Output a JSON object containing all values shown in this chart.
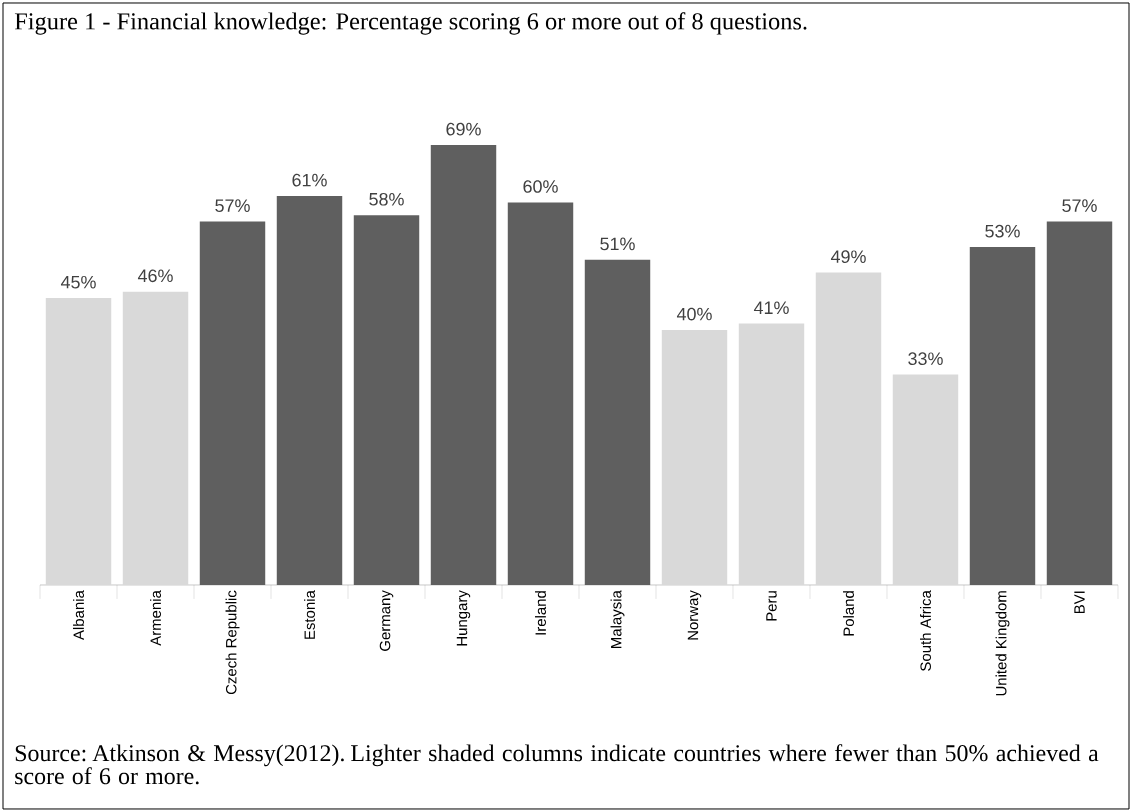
{
  "chart_data": {
    "type": "bar",
    "title": "Figure 1 - Financial knowledge: Percentage scoring 6 or more out of 8 questions.",
    "categories": [
      "Albania",
      "Armenia",
      "Czech Republic",
      "Estonia",
      "Germany",
      "Hungary",
      "Ireland",
      "Malaysia",
      "Norway",
      "Peru",
      "Poland",
      "South Africa",
      "United Kingdom",
      "BVI"
    ],
    "values": [
      45,
      46,
      57,
      61,
      58,
      69,
      60,
      51,
      40,
      41,
      49,
      33,
      53,
      57
    ],
    "value_labels": [
      "45%",
      "46%",
      "57%",
      "61%",
      "58%",
      "69%",
      "60%",
      "51%",
      "40%",
      "41%",
      "49%",
      "33%",
      "53%",
      "57%"
    ],
    "colors": [
      "#d9d9d9",
      "#d9d9d9",
      "#5f5f5f",
      "#5f5f5f",
      "#5f5f5f",
      "#5f5f5f",
      "#5f5f5f",
      "#5f5f5f",
      "#d9d9d9",
      "#d9d9d9",
      "#d9d9d9",
      "#d9d9d9",
      "#5f5f5f",
      "#5f5f5f"
    ],
    "annotations": [
      "Source: Atkinson & Messy(2012). Lighter shaded columns indicate countries where fewer than 50% achieved a score of 6 or more."
    ]
  }
}
